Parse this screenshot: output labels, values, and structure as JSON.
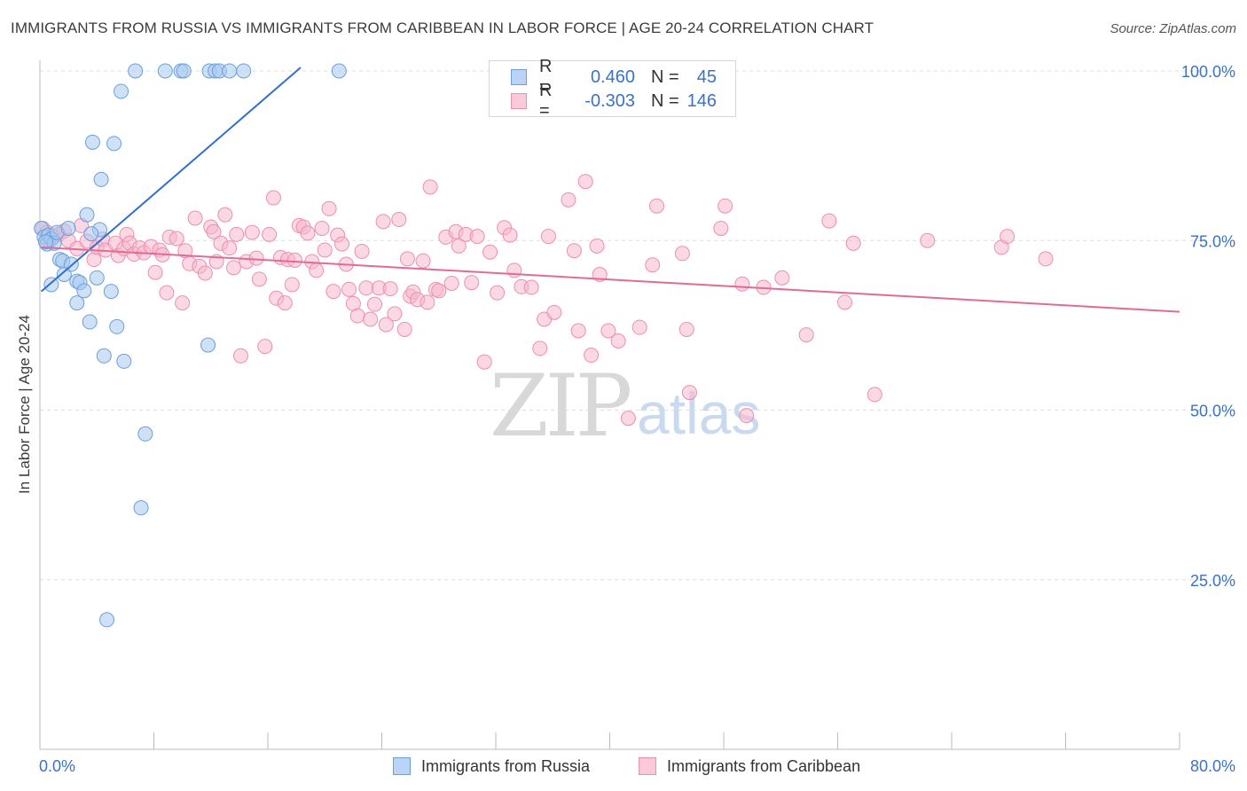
{
  "title": "IMMIGRANTS FROM RUSSIA VS IMMIGRANTS FROM CARIBBEAN IN LABOR FORCE | AGE 20-24 CORRELATION CHART",
  "source": "Source: ZipAtlas.com",
  "watermark": {
    "zip": "ZIP",
    "atlas": "atlas"
  },
  "legend": {
    "rows": [
      {
        "r_label": "R =",
        "r_value": "0.460",
        "n_label": "N =",
        "n_value": "45"
      },
      {
        "r_label": "R =",
        "r_value": "-0.303",
        "n_label": "N =",
        "n_value": "146"
      }
    ]
  },
  "colors": {
    "russia_fill": "#a8c8f0",
    "russia_stroke": "#6a9fdc",
    "russia_line": "#2f6fcf",
    "caribbean_fill": "#f7b8cc",
    "caribbean_stroke": "#ec8fae",
    "caribbean_line": "#e26a98",
    "axis_text": "#3a72c4",
    "grid": "#dddddd"
  },
  "chart_data": {
    "type": "scatter",
    "title": "IMMIGRANTS FROM RUSSIA VS IMMIGRANTS FROM CARIBBEAN IN LABOR FORCE | AGE 20-24 CORRELATION CHART",
    "xlabel": "",
    "ylabel": "In Labor Force | Age 20-24",
    "xlim": [
      0,
      80
    ],
    "ylim": [
      0,
      102
    ],
    "x_tick_labels": [
      "0.0%",
      "80.0%"
    ],
    "y_ticks": [
      25,
      50,
      75,
      100
    ],
    "y_tick_labels": [
      "25.0%",
      "50.0%",
      "75.0%",
      "100.0%"
    ],
    "grid": "horizontal dashed",
    "legend_position": "top-center",
    "series": [
      {
        "name": "Immigrants from Russia",
        "r": 0.46,
        "n": 45,
        "trend": {
          "x": [
            0.1,
            18.3
          ],
          "y": [
            67.5,
            100.5
          ]
        },
        "points": [
          [
            0.1,
            76.8
          ],
          [
            0.3,
            75.5
          ],
          [
            0.5,
            74.5
          ],
          [
            0.6,
            75.8
          ],
          [
            0.8,
            75.2
          ],
          [
            1.0,
            74.6
          ],
          [
            1.2,
            76.2
          ],
          [
            0.4,
            74.8
          ],
          [
            0.8,
            68.5
          ],
          [
            1.4,
            72.2
          ],
          [
            1.6,
            72.0
          ],
          [
            1.7,
            70.0
          ],
          [
            2.0,
            76.8
          ],
          [
            2.2,
            71.5
          ],
          [
            2.6,
            69.0
          ],
          [
            2.6,
            65.8
          ],
          [
            2.8,
            68.8
          ],
          [
            3.1,
            67.6
          ],
          [
            3.3,
            78.8
          ],
          [
            3.5,
            63.0
          ],
          [
            3.7,
            89.5
          ],
          [
            4.0,
            69.5
          ],
          [
            4.2,
            76.6
          ],
          [
            4.3,
            84.0
          ],
          [
            4.5,
            58.0
          ],
          [
            5.0,
            67.5
          ],
          [
            5.2,
            89.3
          ],
          [
            5.4,
            62.3
          ],
          [
            5.7,
            97.0
          ],
          [
            5.9,
            57.2
          ],
          [
            6.7,
            100.0
          ],
          [
            7.4,
            46.5
          ],
          [
            7.1,
            35.6
          ],
          [
            4.7,
            19.1
          ],
          [
            8.8,
            100.0
          ],
          [
            9.9,
            100.0
          ],
          [
            10.1,
            100.0
          ],
          [
            11.9,
            100.0
          ],
          [
            12.3,
            100.0
          ],
          [
            12.6,
            100.0
          ],
          [
            13.3,
            100.0
          ],
          [
            14.3,
            100.0
          ],
          [
            11.8,
            59.6
          ],
          [
            21.0,
            100.0
          ],
          [
            3.6,
            76.0
          ]
        ]
      },
      {
        "name": "Immigrants from Caribbean",
        "r": -0.303,
        "n": 146,
        "trend": {
          "x": [
            0.1,
            80
          ],
          "y": [
            74.0,
            64.5
          ]
        },
        "points": [
          [
            0.2,
            76.8
          ],
          [
            0.5,
            76.2
          ],
          [
            1.0,
            75.6
          ],
          [
            1.3,
            75.9
          ],
          [
            1.7,
            76.4
          ],
          [
            2.0,
            75.0
          ],
          [
            2.6,
            73.8
          ],
          [
            2.9,
            77.2
          ],
          [
            3.3,
            74.9
          ],
          [
            3.8,
            72.2
          ],
          [
            4.0,
            74.0
          ],
          [
            4.4,
            75.2
          ],
          [
            4.6,
            73.6
          ],
          [
            5.3,
            74.6
          ],
          [
            5.5,
            72.8
          ],
          [
            5.9,
            73.8
          ],
          [
            6.1,
            75.9
          ],
          [
            6.3,
            74.6
          ],
          [
            6.6,
            73.0
          ],
          [
            7.0,
            73.9
          ],
          [
            7.3,
            73.2
          ],
          [
            7.8,
            74.1
          ],
          [
            8.1,
            70.3
          ],
          [
            8.4,
            73.6
          ],
          [
            8.6,
            72.9
          ],
          [
            8.9,
            67.3
          ],
          [
            9.1,
            75.5
          ],
          [
            9.6,
            75.3
          ],
          [
            10.0,
            65.8
          ],
          [
            10.2,
            73.5
          ],
          [
            10.5,
            71.6
          ],
          [
            10.9,
            78.3
          ],
          [
            11.2,
            71.2
          ],
          [
            11.6,
            70.2
          ],
          [
            12.0,
            77.0
          ],
          [
            12.2,
            76.3
          ],
          [
            12.4,
            71.9
          ],
          [
            12.7,
            74.6
          ],
          [
            13.0,
            78.8
          ],
          [
            13.3,
            73.9
          ],
          [
            13.6,
            71.0
          ],
          [
            13.8,
            75.9
          ],
          [
            14.1,
            58.0
          ],
          [
            14.5,
            71.9
          ],
          [
            14.9,
            76.2
          ],
          [
            15.2,
            72.4
          ],
          [
            15.4,
            69.3
          ],
          [
            15.8,
            59.4
          ],
          [
            16.1,
            75.9
          ],
          [
            16.4,
            81.3
          ],
          [
            16.6,
            66.5
          ],
          [
            16.9,
            72.5
          ],
          [
            17.2,
            65.8
          ],
          [
            17.4,
            72.2
          ],
          [
            17.7,
            68.5
          ],
          [
            17.9,
            72.1
          ],
          [
            18.2,
            77.2
          ],
          [
            18.5,
            77.0
          ],
          [
            18.8,
            76.1
          ],
          [
            19.1,
            71.9
          ],
          [
            19.4,
            70.6
          ],
          [
            19.8,
            76.8
          ],
          [
            20.0,
            73.6
          ],
          [
            20.3,
            79.7
          ],
          [
            20.6,
            67.5
          ],
          [
            20.9,
            75.8
          ],
          [
            21.2,
            74.5
          ],
          [
            21.5,
            71.5
          ],
          [
            21.7,
            67.8
          ],
          [
            22.0,
            65.7
          ],
          [
            22.3,
            63.9
          ],
          [
            22.6,
            73.4
          ],
          [
            22.9,
            68.0
          ],
          [
            23.2,
            63.4
          ],
          [
            23.5,
            65.6
          ],
          [
            23.8,
            68.0
          ],
          [
            24.1,
            77.8
          ],
          [
            24.3,
            62.6
          ],
          [
            24.6,
            67.9
          ],
          [
            24.9,
            64.2
          ],
          [
            25.2,
            78.1
          ],
          [
            25.6,
            61.9
          ],
          [
            25.8,
            72.3
          ],
          [
            26.0,
            66.8
          ],
          [
            26.2,
            67.4
          ],
          [
            26.5,
            66.3
          ],
          [
            26.9,
            72.0
          ],
          [
            27.2,
            65.9
          ],
          [
            27.4,
            82.9
          ],
          [
            27.8,
            67.8
          ],
          [
            28.0,
            67.6
          ],
          [
            28.5,
            75.5
          ],
          [
            28.9,
            68.7
          ],
          [
            29.2,
            76.3
          ],
          [
            29.4,
            74.2
          ],
          [
            29.9,
            75.9
          ],
          [
            30.3,
            68.8
          ],
          [
            30.7,
            75.6
          ],
          [
            31.2,
            57.1
          ],
          [
            31.6,
            73.3
          ],
          [
            32.1,
            67.3
          ],
          [
            32.6,
            76.9
          ],
          [
            33.0,
            75.8
          ],
          [
            33.3,
            70.6
          ],
          [
            33.8,
            68.2
          ],
          [
            34.5,
            68.1
          ],
          [
            35.1,
            59.1
          ],
          [
            35.4,
            63.4
          ],
          [
            35.7,
            75.6
          ],
          [
            36.1,
            64.4
          ],
          [
            37.1,
            81.0
          ],
          [
            37.5,
            73.5
          ],
          [
            37.8,
            61.7
          ],
          [
            38.3,
            83.7
          ],
          [
            38.7,
            58.1
          ],
          [
            39.1,
            74.2
          ],
          [
            39.3,
            70.0
          ],
          [
            39.9,
            61.7
          ],
          [
            40.6,
            60.2
          ],
          [
            41.3,
            48.8
          ],
          [
            42.1,
            62.2
          ],
          [
            43.0,
            71.4
          ],
          [
            43.3,
            80.1
          ],
          [
            45.1,
            73.1
          ],
          [
            45.4,
            61.9
          ],
          [
            45.6,
            52.6
          ],
          [
            47.8,
            76.8
          ],
          [
            48.1,
            80.1
          ],
          [
            49.3,
            68.6
          ],
          [
            49.6,
            49.2
          ],
          [
            50.8,
            68.1
          ],
          [
            52.1,
            69.5
          ],
          [
            53.8,
            61.1
          ],
          [
            55.4,
            77.9
          ],
          [
            56.5,
            65.9
          ],
          [
            57.1,
            74.6
          ],
          [
            58.6,
            52.3
          ],
          [
            62.3,
            75.0
          ],
          [
            67.5,
            74.0
          ],
          [
            67.9,
            75.6
          ],
          [
            70.6,
            72.3
          ],
          [
            0.6,
            74.9
          ]
        ]
      }
    ]
  }
}
